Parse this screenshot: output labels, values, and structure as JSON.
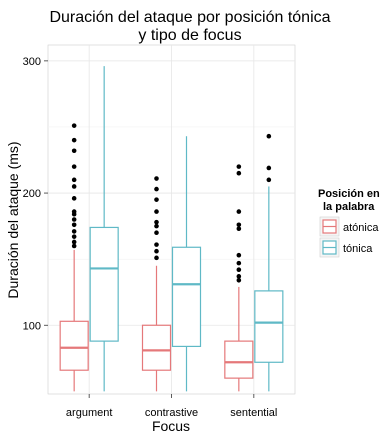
{
  "chart_data": {
    "type": "boxplot",
    "title": "Duración del ataque por posición tónica\ny tipo de focus",
    "xlabel": "Focus",
    "ylabel": "Duración del ataque (ms)",
    "categories": [
      "argument",
      "contrastive",
      "sentential"
    ],
    "yticks": [
      100,
      200,
      300
    ],
    "ylim": [
      48,
      312
    ],
    "grid": true,
    "legend": {
      "title": "Posición en\nla palabra",
      "position": "right",
      "entries": [
        "atónica",
        "tónica"
      ]
    },
    "series": [
      {
        "name": "atónica",
        "color": "#e5787a",
        "boxes": [
          {
            "min": 50,
            "q1": 66,
            "median": 83,
            "q3": 103,
            "max": 157,
            "outliers": [
              160,
              163,
              167,
              171,
              176,
              180,
              184,
              186,
              196,
              205,
              210,
              220,
              232,
              240,
              251
            ]
          },
          {
            "min": 50,
            "q1": 66,
            "median": 81,
            "q3": 100,
            "max": 145,
            "outliers": [
              151,
              156,
              161,
              170,
              175,
              178,
              186,
              195,
              203,
              211
            ]
          },
          {
            "min": 50,
            "q1": 60,
            "median": 72,
            "q3": 88,
            "max": 129,
            "outliers": [
              134,
              137,
              142,
              147,
              153,
              173,
              176,
              186,
              215,
              220
            ]
          }
        ]
      },
      {
        "name": "tónica",
        "color": "#5fb9c6",
        "boxes": [
          {
            "min": 50,
            "q1": 88,
            "median": 143,
            "q3": 174,
            "max": 296,
            "outliers": []
          },
          {
            "min": 50,
            "q1": 84,
            "median": 131,
            "q3": 159,
            "max": 243,
            "outliers": []
          },
          {
            "min": 50,
            "q1": 72,
            "median": 102,
            "q3": 126,
            "max": 205,
            "outliers": [
              210,
              219,
              243
            ]
          }
        ]
      }
    ]
  }
}
